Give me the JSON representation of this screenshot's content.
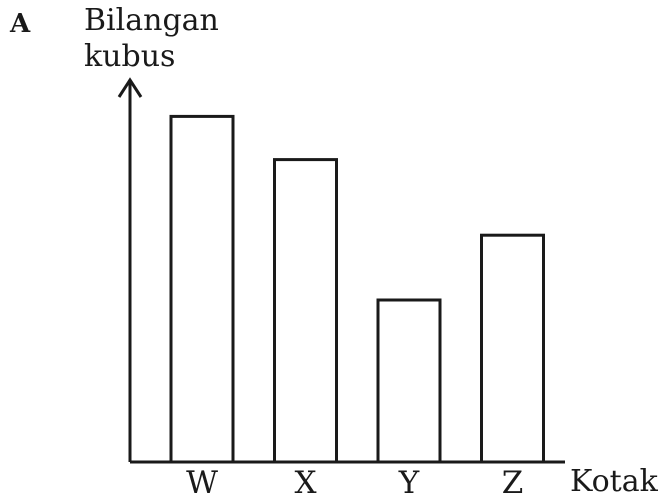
{
  "option_letter": "A",
  "chart_data": {
    "type": "bar",
    "ylabel_line1": "Bilangan",
    "ylabel_line2": "kubus",
    "xlabel": "Kotak",
    "categories": [
      "W",
      "X",
      "Y",
      "Z"
    ],
    "values": [
      6.4,
      5.6,
      3.0,
      4.2
    ],
    "ylim": [
      0,
      8
    ],
    "grid": false,
    "legend": "none",
    "y_ticks_shown": false,
    "colors": {
      "stroke": "#1a1a1a",
      "fill": "#ffffff"
    }
  }
}
